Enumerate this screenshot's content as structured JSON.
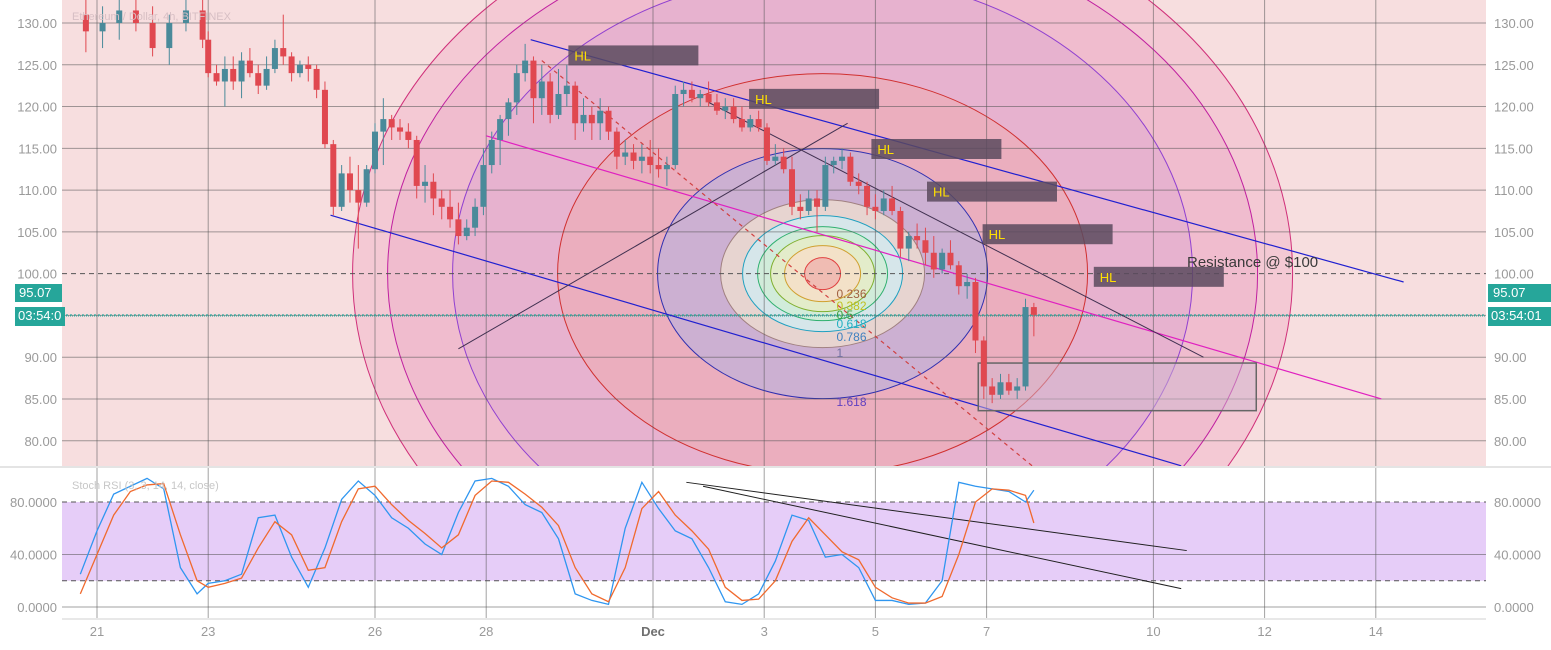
{
  "chart_data": [
    {
      "type": "candlestick",
      "title": "Ethereum / Dollar, 4h, BITFINEX",
      "ylim": [
        76,
        133
      ],
      "y_ticks": [
        "130.00",
        "125.00",
        "120.00",
        "115.00",
        "110.00",
        "105.00",
        "100.00",
        "95.00",
        "90.00",
        "85.00",
        "80.00"
      ],
      "x_ticks": [
        "21",
        "23",
        "26",
        "28",
        "Dec",
        "3",
        "5",
        "7",
        "10",
        "12",
        "14"
      ],
      "last_price": "95.07",
      "countdown": "03:54:01",
      "countdown_left": "03:54:0",
      "resistance_label": "Resistance @ $100",
      "resistance_level": 100,
      "hl_label": "HL",
      "hl_count": 6,
      "fib_labels": [
        "0.236",
        "0.382",
        "0.5",
        "0.618",
        "0.786",
        "1",
        "1.618"
      ],
      "candles": [
        [
          20.8,
          131,
          133,
          126.5,
          129
        ],
        [
          21.1,
          129,
          132,
          127,
          130
        ],
        [
          21.4,
          130,
          133,
          128,
          131.5
        ],
        [
          21.7,
          131.5,
          133,
          129,
          130
        ],
        [
          22.0,
          130,
          132,
          126,
          127
        ],
        [
          22.3,
          127,
          131,
          125,
          130
        ],
        [
          22.6,
          130,
          133,
          129,
          131.5
        ],
        [
          22.9,
          131.5,
          133,
          127,
          128
        ],
        [
          23.0,
          128,
          129,
          123.5,
          124
        ],
        [
          23.15,
          124,
          125,
          122.5,
          123
        ],
        [
          23.3,
          123,
          126,
          120,
          124.5
        ],
        [
          23.45,
          124.5,
          126,
          122,
          123
        ],
        [
          23.6,
          123,
          126.5,
          121,
          125.5
        ],
        [
          23.75,
          125.5,
          127,
          123.5,
          124
        ],
        [
          23.9,
          124,
          125,
          121.5,
          122.5
        ],
        [
          24.05,
          122.5,
          126,
          122,
          124.5
        ],
        [
          24.2,
          124.5,
          128,
          124,
          127
        ],
        [
          24.35,
          127,
          131,
          125,
          126
        ],
        [
          24.5,
          126,
          126.5,
          123,
          124
        ],
        [
          24.65,
          124,
          125.5,
          123.5,
          125
        ],
        [
          24.8,
          125,
          126,
          123,
          124.5
        ],
        [
          24.95,
          124.5,
          125,
          121,
          122
        ],
        [
          25.1,
          122,
          123,
          115,
          115.5
        ],
        [
          25.25,
          115.5,
          116,
          107,
          108
        ],
        [
          25.4,
          108,
          113,
          107.5,
          112
        ],
        [
          25.55,
          112,
          114,
          108.5,
          110
        ],
        [
          25.7,
          110,
          113,
          103,
          108.5
        ],
        [
          25.85,
          108.5,
          113,
          108,
          112.5
        ],
        [
          26.0,
          112.5,
          118,
          112,
          117
        ],
        [
          26.15,
          117,
          121,
          113,
          118.5
        ],
        [
          26.3,
          118.5,
          119,
          116,
          117.5
        ],
        [
          26.45,
          117.5,
          118.5,
          116,
          117
        ],
        [
          26.6,
          117,
          118,
          115,
          116
        ],
        [
          26.75,
          116,
          116.5,
          109,
          110.5
        ],
        [
          26.9,
          110.5,
          113,
          108.5,
          111
        ],
        [
          27.05,
          111,
          112,
          107,
          109
        ],
        [
          27.2,
          109,
          110,
          106.5,
          108
        ],
        [
          27.35,
          108,
          110,
          105.5,
          106.5
        ],
        [
          27.5,
          106.5,
          108.5,
          103.5,
          104.5
        ],
        [
          27.65,
          104.5,
          106.5,
          104,
          105.5
        ],
        [
          27.8,
          105.5,
          109,
          104.5,
          108
        ],
        [
          27.95,
          108,
          115,
          107,
          113
        ],
        [
          28.1,
          113,
          117,
          112,
          116
        ],
        [
          28.25,
          116,
          119,
          113,
          118.5
        ],
        [
          28.4,
          118.5,
          121,
          116.5,
          120.5
        ],
        [
          28.55,
          120.5,
          125,
          119,
          124
        ],
        [
          28.7,
          124,
          127.5,
          123,
          125.5
        ],
        [
          28.85,
          125.5,
          126,
          118,
          121
        ],
        [
          29.0,
          121,
          125,
          119,
          123
        ],
        [
          29.15,
          123,
          124,
          118,
          119
        ],
        [
          29.3,
          119,
          124.5,
          118.5,
          121.5
        ],
        [
          29.45,
          121.5,
          125,
          120,
          122.5
        ],
        [
          29.6,
          122.5,
          123,
          116,
          118
        ],
        [
          29.75,
          118,
          121,
          117,
          119
        ],
        [
          29.9,
          119,
          120,
          116,
          118
        ],
        [
          30.05,
          118,
          121,
          116,
          119.5
        ],
        [
          30.2,
          119.5,
          120,
          116,
          117
        ],
        [
          30.35,
          117,
          117.5,
          112.5,
          114
        ],
        [
          30.5,
          114,
          116,
          113,
          114.5
        ],
        [
          30.65,
          114.5,
          115.5,
          112.5,
          113.5
        ],
        [
          30.8,
          113.5,
          115.5,
          112,
          114
        ],
        [
          30.95,
          114,
          116,
          112,
          113
        ],
        [
          31.1,
          113,
          115,
          111.5,
          112.5
        ],
        [
          31.25,
          112.5,
          114,
          110.5,
          113
        ],
        [
          31.4,
          113,
          122.5,
          112.5,
          121.5
        ],
        [
          31.55,
          121.5,
          123,
          120,
          122
        ],
        [
          31.7,
          122,
          123,
          120.5,
          121
        ],
        [
          31.85,
          121,
          122,
          120,
          121.5
        ],
        [
          32.0,
          121.5,
          123,
          120,
          120.5
        ],
        [
          32.15,
          120.5,
          121.5,
          119,
          119.5
        ],
        [
          32.3,
          119.5,
          121,
          118.5,
          120
        ],
        [
          32.45,
          120,
          121,
          118,
          118.5
        ],
        [
          32.6,
          118.5,
          120,
          117,
          117.5
        ],
        [
          32.75,
          117.5,
          119,
          117,
          118.5
        ],
        [
          32.9,
          118.5,
          119.5,
          117,
          117.5
        ],
        [
          33.05,
          117.5,
          118,
          113,
          113.5
        ],
        [
          33.2,
          113.5,
          115.5,
          113,
          114
        ],
        [
          33.35,
          114,
          115,
          112,
          112.5
        ],
        [
          33.5,
          112.5,
          114,
          107,
          108
        ],
        [
          33.65,
          108,
          109.5,
          106.5,
          107.5
        ],
        [
          33.8,
          107.5,
          110,
          107,
          109
        ],
        [
          33.95,
          109,
          110,
          105,
          108
        ],
        [
          34.1,
          108,
          114,
          107.5,
          113
        ],
        [
          34.25,
          113,
          114,
          112,
          113.5
        ],
        [
          34.4,
          113.5,
          115,
          112.5,
          114
        ],
        [
          34.55,
          114,
          114.5,
          110.5,
          111
        ],
        [
          34.7,
          111,
          112,
          109.5,
          110.5
        ],
        [
          34.85,
          110.5,
          111,
          107,
          108
        ],
        [
          35.0,
          108,
          109.5,
          106.5,
          107.5
        ],
        [
          35.15,
          107.5,
          110,
          107,
          109
        ],
        [
          35.3,
          109,
          110.5,
          107,
          107.5
        ],
        [
          35.45,
          107.5,
          108,
          102,
          103
        ],
        [
          35.6,
          103,
          105,
          101.5,
          104.5
        ],
        [
          35.75,
          104.5,
          106,
          103,
          104
        ],
        [
          35.9,
          104,
          105.5,
          101,
          102.5
        ],
        [
          36.05,
          102.5,
          104.5,
          99.5,
          100.5
        ],
        [
          36.2,
          100.5,
          103,
          100,
          102.5
        ],
        [
          36.35,
          102.5,
          104,
          100.5,
          101
        ],
        [
          36.5,
          101,
          101.5,
          97.5,
          98.5
        ],
        [
          36.65,
          98.5,
          100,
          97,
          99
        ],
        [
          36.8,
          99,
          99.5,
          90.5,
          92
        ],
        [
          36.95,
          92,
          92.5,
          85,
          86.5
        ],
        [
          37.1,
          86.5,
          87.5,
          84.5,
          85.5
        ],
        [
          37.25,
          85.5,
          88,
          85,
          87
        ],
        [
          37.4,
          87,
          88,
          85.5,
          86
        ],
        [
          37.55,
          86,
          87.5,
          85,
          86.5
        ],
        [
          37.7,
          86.5,
          97,
          86,
          96
        ],
        [
          37.85,
          96,
          96.5,
          92.5,
          95.07
        ]
      ]
    },
    {
      "type": "line",
      "title": "Stoch RSI (3, 3, 14, 14, close)",
      "ylim": [
        -5,
        100
      ],
      "y_ticks": [
        "80.0000",
        "40.0000",
        "0.0000"
      ],
      "series": [
        {
          "name": "K",
          "color": "#2f96f0",
          "x": [
            20.7,
            21.0,
            21.3,
            21.6,
            21.9,
            22.2,
            22.5,
            22.8,
            23.0,
            23.3,
            23.6,
            23.9,
            24.2,
            24.5,
            24.8,
            25.1,
            25.4,
            25.7,
            26.0,
            26.3,
            26.6,
            26.9,
            27.2,
            27.5,
            27.8,
            28.1,
            28.4,
            28.7,
            29.0,
            29.3,
            29.6,
            29.9,
            30.2,
            30.5,
            30.8,
            31.1,
            31.4,
            31.7,
            32.0,
            32.3,
            32.6,
            32.9,
            33.2,
            33.5,
            33.8,
            34.1,
            34.4,
            34.7,
            35.0,
            35.3,
            35.6,
            35.9,
            36.2,
            36.5,
            36.8,
            37.1,
            37.4,
            37.7,
            37.85
          ],
          "y": [
            25,
            58,
            86,
            92,
            98,
            90,
            30,
            10,
            18,
            20,
            25,
            68,
            70,
            38,
            15,
            45,
            82,
            96,
            85,
            68,
            60,
            48,
            40,
            72,
            96,
            98,
            92,
            78,
            72,
            52,
            10,
            5,
            2,
            60,
            95,
            75,
            58,
            52,
            30,
            4,
            2,
            10,
            35,
            70,
            66,
            38,
            40,
            30,
            5,
            5,
            2,
            3,
            20,
            95,
            92,
            90,
            88,
            80,
            89
          ]
        },
        {
          "name": "D",
          "color": "#f06a2e",
          "x": [
            20.7,
            21.0,
            21.3,
            21.6,
            21.9,
            22.2,
            22.5,
            22.8,
            23.0,
            23.3,
            23.6,
            23.9,
            24.2,
            24.5,
            24.8,
            25.1,
            25.4,
            25.7,
            26.0,
            26.3,
            26.6,
            26.9,
            27.2,
            27.5,
            27.8,
            28.1,
            28.4,
            28.7,
            29.0,
            29.3,
            29.6,
            29.9,
            30.2,
            30.5,
            30.8,
            31.1,
            31.4,
            31.7,
            32.0,
            32.3,
            32.6,
            32.9,
            33.2,
            33.5,
            33.8,
            34.1,
            34.4,
            34.7,
            35.0,
            35.3,
            35.6,
            35.9,
            36.2,
            36.5,
            36.8,
            37.1,
            37.4,
            37.7,
            37.85
          ],
          "y": [
            10,
            40,
            70,
            88,
            93,
            94,
            55,
            20,
            15,
            18,
            22,
            45,
            65,
            55,
            28,
            30,
            65,
            90,
            92,
            78,
            66,
            56,
            45,
            55,
            85,
            96,
            95,
            86,
            76,
            62,
            30,
            10,
            4,
            30,
            75,
            88,
            70,
            58,
            44,
            15,
            5,
            6,
            20,
            50,
            68,
            55,
            42,
            36,
            15,
            7,
            3,
            3,
            8,
            40,
            80,
            90,
            89,
            85,
            64
          ]
        }
      ],
      "bands": [
        20,
        80
      ]
    }
  ]
}
